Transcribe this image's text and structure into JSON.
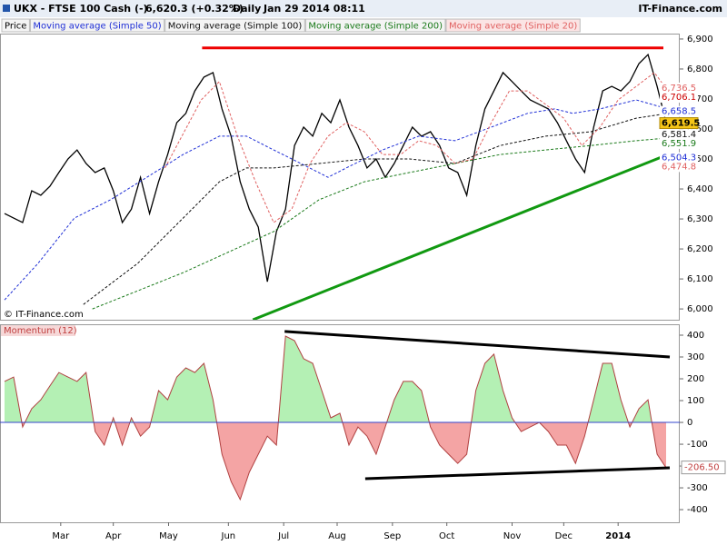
{
  "header": {
    "symbol": "UKX - FTSE 100 Cash (-)",
    "quote": "6,620.3 (+0.32%)",
    "period": "Daily",
    "timestamp": "Jan 29 2014 08:11",
    "brand": "IT-Finance.com"
  },
  "chart_data": [
    {
      "type": "line",
      "watermark": "© IT-Finance.com",
      "xlim": [
        -0.5,
        74.5
      ],
      "ylim": [
        5964,
        6918
      ],
      "yticks": [
        {
          "value": 6000,
          "label": "6,000"
        },
        {
          "value": 6100,
          "label": "6,100"
        },
        {
          "value": 6200,
          "label": "6,200"
        },
        {
          "value": 6300,
          "label": "6,300"
        },
        {
          "value": 6400,
          "label": "6,400"
        },
        {
          "value": 6500,
          "label": "6,500"
        },
        {
          "value": 6600,
          "label": "6,600"
        },
        {
          "value": 6700,
          "label": "6,700"
        },
        {
          "value": 6800,
          "label": "6,800"
        },
        {
          "value": 6900,
          "label": "6,900"
        }
      ],
      "series": [
        {
          "name": "Price",
          "color": "#000000",
          "line_style": "solid",
          "x": [
            0,
            1,
            2,
            3,
            4,
            5,
            6,
            7,
            8,
            9,
            10,
            11,
            12,
            13,
            14,
            15,
            16,
            17,
            18,
            19,
            20,
            21,
            22,
            23,
            24,
            25,
            26,
            27,
            28,
            29,
            30,
            31,
            32,
            33,
            34,
            35,
            36,
            37,
            38,
            39,
            40,
            41,
            42,
            43,
            44,
            45,
            46,
            47,
            48,
            49,
            50,
            51,
            52,
            53,
            54,
            55,
            56,
            57,
            58,
            59,
            60,
            61,
            62,
            63,
            64,
            65,
            66,
            67,
            68,
            69,
            70,
            71,
            72,
            73
          ],
          "values": [
            6318,
            6303,
            6288,
            6394,
            6379,
            6409,
            6455,
            6500,
            6530,
            6485,
            6455,
            6470,
            6394,
            6288,
            6333,
            6439,
            6318,
            6424,
            6515,
            6621,
            6652,
            6727,
            6773,
            6788,
            6667,
            6576,
            6424,
            6333,
            6273,
            6091,
            6258,
            6333,
            6545,
            6606,
            6576,
            6652,
            6621,
            6697,
            6606,
            6545,
            6470,
            6500,
            6439,
            6485,
            6545,
            6606,
            6576,
            6591,
            6545,
            6470,
            6455,
            6379,
            6545,
            6667,
            6727,
            6788,
            6758,
            6727,
            6697,
            6682,
            6667,
            6621,
            6561,
            6500,
            6455,
            6606,
            6727,
            6742,
            6727,
            6758,
            6818,
            6848,
            6742,
            6621
          ]
        },
        {
          "name": "Moving average (Simple 50)",
          "color": "#1f2fd6",
          "line_style": "dashed",
          "x": [
            0,
            3.7,
            7.7,
            11.7,
            15.7,
            19.7,
            23.7,
            26.7,
            29.7,
            32.7,
            35.7,
            37.7,
            41.7,
            45.7,
            49.7,
            53.7,
            57.7,
            60.7,
            62.7,
            65.7,
            69.7,
            73.2
          ],
          "values": [
            6030,
            6152,
            6303,
            6364,
            6439,
            6515,
            6576,
            6576,
            6530,
            6485,
            6439,
            6470,
            6530,
            6576,
            6561,
            6606,
            6652,
            6667,
            6652,
            6667,
            6697,
            6667
          ]
        },
        {
          "name": "Moving average (Simple 100)",
          "color": "#111111",
          "line_style": "dashed",
          "x": [
            8.7,
            14.7,
            19.7,
            23.7,
            26.7,
            29.7,
            34.7,
            39.7,
            44.7,
            49.7,
            54.7,
            59.7,
            64.7,
            69.7,
            73.2
          ],
          "values": [
            6015,
            6152,
            6303,
            6424,
            6470,
            6470,
            6485,
            6500,
            6500,
            6485,
            6545,
            6576,
            6591,
            6636,
            6652
          ]
        },
        {
          "name": "Moving average (Simple 200)",
          "color": "#1a7a1a",
          "line_style": "dashed",
          "x": [
            9.7,
            19.7,
            29.7,
            34.7,
            39.7,
            44.7,
            49.7,
            54.7,
            59.7,
            64.7,
            69.7,
            73.2
          ],
          "values": [
            6000,
            6121,
            6258,
            6364,
            6424,
            6455,
            6485,
            6515,
            6530,
            6545,
            6561,
            6570
          ]
        },
        {
          "name": "Moving average (Simple 20)",
          "color": "#e06060",
          "line_style": "dashed",
          "x": [
            17.7,
            21.7,
            23.7,
            25.7,
            27.7,
            29.7,
            31.7,
            33.7,
            35.7,
            37.7,
            39.7,
            41.7,
            43.7,
            45.7,
            47.7,
            49.7,
            51.7,
            53.7,
            55.7,
            57.7,
            59.7,
            61.7,
            63.7,
            65.7,
            67.7,
            69.7,
            71.7,
            73.2
          ],
          "values": [
            6470,
            6697,
            6758,
            6576,
            6424,
            6288,
            6333,
            6485,
            6576,
            6621,
            6591,
            6515,
            6515,
            6561,
            6545,
            6485,
            6500,
            6621,
            6727,
            6727,
            6682,
            6636,
            6545,
            6606,
            6697,
            6742,
            6788,
            6727
          ]
        }
      ],
      "price_labels": [
        {
          "value": 6736.5,
          "label": "6,736.5",
          "color": "#e06060"
        },
        {
          "value": 6706.1,
          "label": "6,706.1",
          "color": "#cc0000"
        },
        {
          "value": 6658.5,
          "label": "6,658.5",
          "color": "#1f2fd6"
        },
        {
          "value": 6619.5,
          "label": "6,619.5",
          "color": "#000000",
          "background": "#f5c518"
        },
        {
          "value": 6581.4,
          "label": "6,581.4",
          "color": "#111111"
        },
        {
          "value": 6551.9,
          "label": "6,551.9",
          "color": "#1a7a1a"
        },
        {
          "value": 6504.3,
          "label": "6,504.3",
          "color": "#1f2fd6"
        },
        {
          "value": 6474.8,
          "label": "6,474.8",
          "color": "#e06060"
        }
      ],
      "trend_lines": [
        {
          "x": [
            21.8,
            72.7
          ],
          "values": [
            6870,
            6870
          ],
          "color": "#ee0000"
        },
        {
          "x": [
            27.4,
            73.2
          ],
          "values": [
            5964,
            6515
          ],
          "color": "#119911"
        }
      ]
    },
    {
      "type": "area",
      "title": "Momentum (12)",
      "xlim": [
        -0.5,
        74.5
      ],
      "ylim": [
        -458,
        450
      ],
      "yticks": [
        -400,
        -300,
        -200,
        -100,
        0,
        100,
        200,
        300,
        400
      ],
      "xticks": [
        {
          "value": 6.2,
          "label": "Mar"
        },
        {
          "value": 12,
          "label": "Apr"
        },
        {
          "value": 18.1,
          "label": "May"
        },
        {
          "value": 24.7,
          "label": "Jun"
        },
        {
          "value": 30.8,
          "label": "Jul"
        },
        {
          "value": 36.7,
          "label": "Aug"
        },
        {
          "value": 42.8,
          "label": "Sep"
        },
        {
          "value": 48.8,
          "label": "Oct"
        },
        {
          "value": 56,
          "label": "Nov"
        },
        {
          "value": 61.7,
          "label": "Dec"
        },
        {
          "value": 67.7,
          "label": "2014"
        }
      ],
      "colors": {
        "positive": "#b4f0b4",
        "negative": "#f4a4a4",
        "line": "#b04040"
      },
      "x": [
        0,
        1,
        2,
        3,
        4,
        5,
        6,
        7,
        8,
        9,
        10,
        11,
        12,
        13,
        14,
        15,
        16,
        17,
        18,
        19,
        20,
        21,
        22,
        23,
        24,
        25,
        26,
        27,
        28,
        29,
        30,
        31,
        32,
        33,
        34,
        35,
        36,
        37,
        38,
        39,
        40,
        41,
        42,
        43,
        44,
        45,
        46,
        47,
        48,
        49,
        50,
        51,
        52,
        53,
        54,
        55,
        56,
        57,
        58,
        59,
        60,
        61,
        62,
        63,
        64,
        65,
        66,
        67,
        68,
        69,
        70,
        71,
        72,
        73
      ],
      "values": [
        188,
        208,
        -21,
        63,
        104,
        167,
        229,
        208,
        188,
        229,
        -42,
        -104,
        21,
        -104,
        21,
        -63,
        -21,
        146,
        104,
        208,
        250,
        229,
        271,
        104,
        -146,
        -271,
        -354,
        -229,
        -146,
        -63,
        -104,
        396,
        375,
        292,
        271,
        146,
        21,
        42,
        -104,
        -21,
        -63,
        -146,
        -21,
        104,
        188,
        188,
        146,
        -21,
        -104,
        -146,
        -188,
        -146,
        146,
        271,
        313,
        146,
        21,
        -42,
        -21,
        0,
        -42,
        -104,
        -104,
        -188,
        -63,
        104,
        271,
        271,
        104,
        -21,
        63,
        104,
        -146,
        -208
      ],
      "last_value": {
        "value": -206.5,
        "label": "-206.50"
      },
      "trend_lines": [
        {
          "x": [
            30.9,
            73.4
          ],
          "values": [
            417,
            300
          ],
          "color": "#000000"
        },
        {
          "x": [
            39.8,
            73.4
          ],
          "values": [
            -258,
            -208
          ],
          "color": "#000000"
        }
      ]
    }
  ]
}
